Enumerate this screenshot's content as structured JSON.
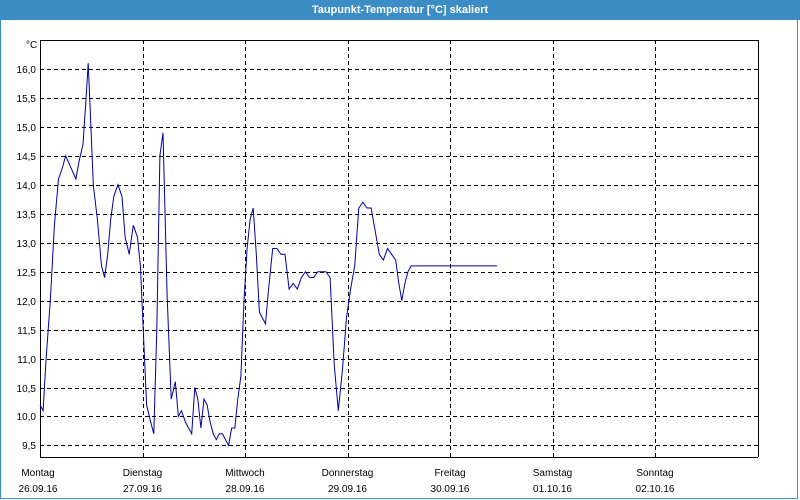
{
  "window": {
    "title": "Taupunkt-Temperatur [°C] skaliert"
  },
  "chart_data": {
    "type": "line",
    "title": "Taupunkt-Temperatur [°C] skaliert",
    "unit_label": "°C",
    "ylim": [
      9.3,
      16.5
    ],
    "xlim": [
      0,
      7
    ],
    "y_ticks": [
      9.5,
      10.0,
      10.5,
      11.0,
      11.5,
      12.0,
      12.5,
      13.0,
      13.5,
      14.0,
      14.5,
      15.0,
      15.5,
      16.0
    ],
    "y_tick_labels": [
      "9,5",
      "10,0",
      "10,5",
      "11,0",
      "11,5",
      "12,0",
      "12,5",
      "13,0",
      "13,5",
      "14,0",
      "14,5",
      "15,0",
      "15,5",
      "16,0"
    ],
    "day_ticks": [
      {
        "day": "Montag",
        "date": "26.09.16"
      },
      {
        "day": "Dienstag",
        "date": "27.09.16"
      },
      {
        "day": "Mittwoch",
        "date": "28.09.16"
      },
      {
        "day": "Donnerstag",
        "date": "29.09.16"
      },
      {
        "day": "Freitag",
        "date": "30.09.16"
      },
      {
        "day": "Samstag",
        "date": "01.10.16"
      },
      {
        "day": "Sonntag",
        "date": "02.10.16"
      }
    ],
    "grid": true,
    "line_color": "#0000a0",
    "series": [
      {
        "x": [
          0.0,
          0.03,
          0.06,
          0.1,
          0.14,
          0.18,
          0.22,
          0.25,
          0.3,
          0.35,
          0.38,
          0.42,
          0.45,
          0.47,
          0.49,
          0.52,
          0.56,
          0.6,
          0.63,
          0.66,
          0.69,
          0.72,
          0.76,
          0.8,
          0.83,
          0.87,
          0.91,
          0.95,
          0.98,
          1.01,
          1.04,
          1.08,
          1.11,
          1.14,
          1.17,
          1.2,
          1.24,
          1.28,
          1.32,
          1.35,
          1.38,
          1.42,
          1.45,
          1.48,
          1.51,
          1.54,
          1.57,
          1.6,
          1.63,
          1.66,
          1.69,
          1.72,
          1.75,
          1.78,
          1.81,
          1.84,
          1.87,
          1.9,
          1.93,
          1.96,
          1.99,
          2.02,
          2.05,
          2.08,
          2.11,
          2.14,
          2.17,
          2.2,
          2.23,
          2.27,
          2.31,
          2.35,
          2.39,
          2.43,
          2.47,
          2.51,
          2.55,
          2.59,
          2.63,
          2.67,
          2.71,
          2.75,
          2.79,
          2.83,
          2.87,
          2.91,
          2.95,
          2.99,
          3.03,
          3.07,
          3.11,
          3.15,
          3.19,
          3.23,
          3.27,
          3.31,
          3.35,
          3.39,
          3.43,
          3.47,
          3.5,
          3.53,
          3.56,
          3.59,
          3.62,
          3.65,
          3.68,
          3.72,
          3.75,
          3.78,
          3.81,
          3.84,
          3.87,
          3.9,
          3.93,
          3.96,
          3.99,
          4.02,
          4.05,
          4.08,
          4.11,
          4.14,
          4.17,
          4.2,
          4.23,
          4.26,
          4.3,
          4.34,
          4.38,
          4.42,
          4.46
        ],
        "y": [
          10.2,
          10.1,
          11.0,
          12.0,
          13.3,
          14.1,
          14.3,
          14.5,
          14.3,
          14.1,
          14.4,
          14.7,
          15.5,
          16.1,
          15.3,
          14.0,
          13.4,
          12.6,
          12.4,
          12.8,
          13.4,
          13.8,
          14.0,
          13.8,
          13.1,
          12.8,
          13.3,
          13.1,
          12.6,
          11.4,
          10.2,
          9.9,
          9.7,
          11.5,
          14.5,
          14.9,
          12.1,
          10.3,
          10.6,
          10.0,
          10.1,
          9.9,
          9.8,
          9.7,
          10.5,
          10.3,
          9.8,
          10.3,
          10.2,
          9.9,
          9.7,
          9.6,
          9.7,
          9.7,
          9.6,
          9.5,
          9.8,
          9.8,
          10.3,
          10.7,
          12.0,
          12.9,
          13.4,
          13.6,
          12.8,
          11.8,
          11.7,
          11.6,
          12.2,
          12.9,
          12.9,
          12.8,
          12.8,
          12.2,
          12.3,
          12.2,
          12.4,
          12.5,
          12.4,
          12.4,
          12.5,
          12.5,
          12.5,
          12.4,
          10.9,
          10.1,
          10.8,
          11.7,
          12.2,
          12.6,
          13.6,
          13.7,
          13.6,
          13.6,
          13.2,
          12.8,
          12.7,
          12.9,
          12.8,
          12.7,
          12.3,
          12.0,
          12.3,
          12.5,
          12.6,
          12.6,
          12.6,
          12.6,
          12.6,
          12.6,
          12.6,
          12.6,
          12.6,
          12.6,
          12.6,
          12.6,
          12.6,
          12.6,
          12.6,
          12.6,
          12.6,
          12.6,
          12.6,
          12.6,
          12.6,
          12.6,
          12.6,
          12.6,
          12.6,
          12.6,
          12.6
        ]
      }
    ]
  }
}
